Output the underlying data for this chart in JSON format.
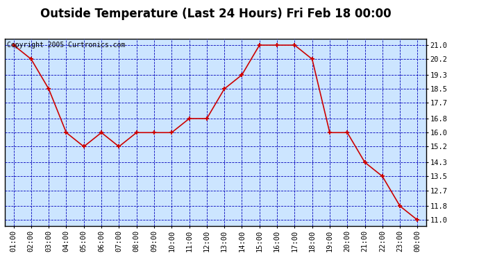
{
  "title": "Outside Temperature (Last 24 Hours) Fri Feb 18 00:00",
  "copyright": "Copyright 2005 Curtronics.com",
  "x_labels": [
    "01:00",
    "02:00",
    "03:00",
    "04:00",
    "05:00",
    "06:00",
    "07:00",
    "08:00",
    "09:00",
    "10:00",
    "11:00",
    "12:00",
    "13:00",
    "14:00",
    "15:00",
    "16:00",
    "17:00",
    "18:00",
    "19:00",
    "20:00",
    "21:00",
    "22:00",
    "23:00",
    "00:00"
  ],
  "x_values": [
    1,
    2,
    3,
    4,
    5,
    6,
    7,
    8,
    9,
    10,
    11,
    12,
    13,
    14,
    15,
    16,
    17,
    18,
    19,
    20,
    21,
    22,
    23,
    24
  ],
  "y_values": [
    21.0,
    20.2,
    18.5,
    16.0,
    15.2,
    16.0,
    15.2,
    16.0,
    16.0,
    16.0,
    16.8,
    16.8,
    18.5,
    19.3,
    21.0,
    21.0,
    21.0,
    20.2,
    16.0,
    16.0,
    14.3,
    13.5,
    11.8,
    11.0
  ],
  "y_ticks": [
    11.0,
    11.8,
    12.7,
    13.5,
    14.3,
    15.2,
    16.0,
    16.8,
    17.7,
    18.5,
    19.3,
    20.2,
    21.0
  ],
  "ylim": [
    10.65,
    21.35
  ],
  "xlim": [
    0.5,
    24.5
  ],
  "line_color": "#cc0000",
  "marker_color": "#cc0000",
  "bg_color": "#cce5ff",
  "grid_color": "#0000bb",
  "border_color": "#000000",
  "title_fontsize": 12,
  "copyright_fontsize": 7,
  "tick_fontsize": 7.5,
  "fig_bg": "#ffffff"
}
